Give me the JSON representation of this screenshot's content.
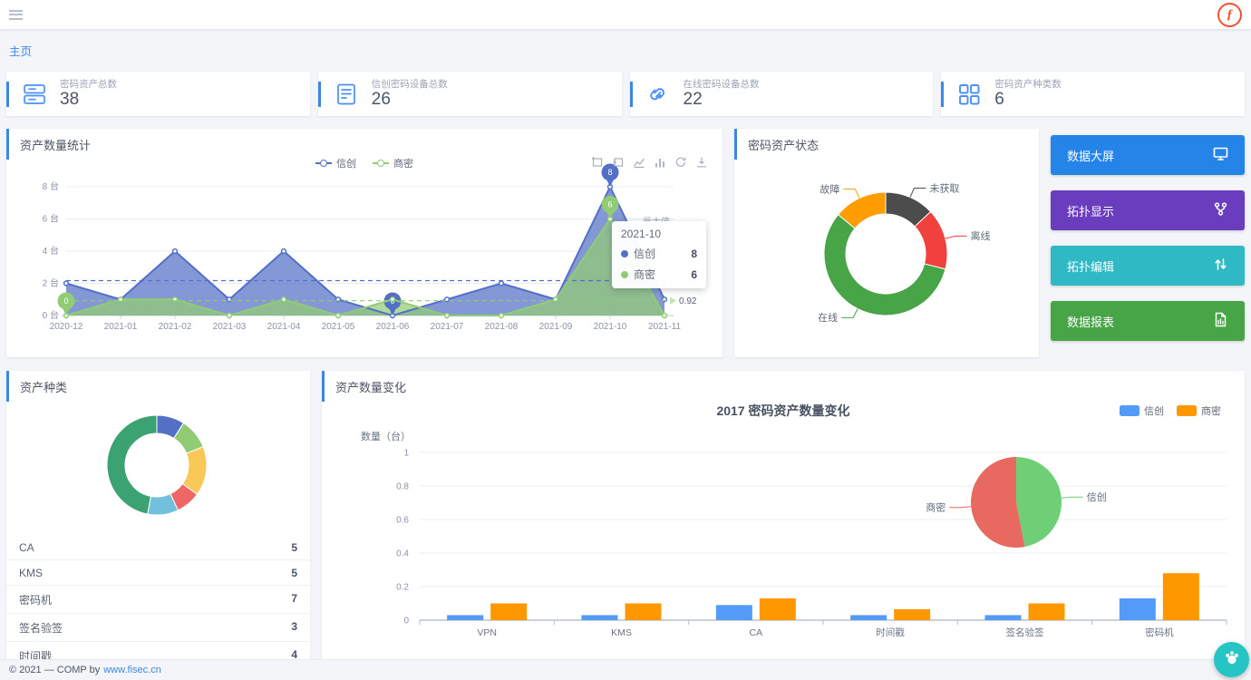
{
  "topbar": {
    "logo_text": "ƒ"
  },
  "breadcrumb": {
    "home": "主页"
  },
  "stat_cards": [
    {
      "label": "密码资产总数",
      "value": "38",
      "icon": "server-icon"
    },
    {
      "label": "信创密码设备总数",
      "value": "26",
      "icon": "document-icon"
    },
    {
      "label": "在线密码设备总数",
      "value": "22",
      "icon": "link-icon"
    },
    {
      "label": "密码资产种类数",
      "value": "6",
      "icon": "grid-icon"
    }
  ],
  "panels": {
    "asset_stats": {
      "title": "资产数量统计",
      "max_point_label": "最大值",
      "toolbox": [
        "area-zoom",
        "zoom-reset",
        "switch-to-line",
        "switch-to-bar",
        "restore",
        "save-image"
      ]
    },
    "asset_status": {
      "title": "密码资产状态"
    },
    "asset_category": {
      "title": "资产种类"
    },
    "asset_change": {
      "title": "资产数量变化"
    }
  },
  "action_buttons": [
    {
      "label": "数据大屏",
      "color": "#2484e8",
      "icon": "monitor-icon"
    },
    {
      "label": "拓扑显示",
      "color": "#6a3dbe",
      "icon": "topology-icon"
    },
    {
      "label": "拓扑编辑",
      "color": "#2fb9c5",
      "icon": "swap-vertical-icon"
    },
    {
      "label": "数据报表",
      "color": "#47a547",
      "icon": "report-icon"
    }
  ],
  "footer": {
    "copyright": "© 2021 — COMP by",
    "link": "www.fisec.cn"
  },
  "chart_data": [
    {
      "id": "asset-count-line",
      "type": "line",
      "title": "资产数量统计",
      "x": [
        "2020-12",
        "2021-01",
        "2021-02",
        "2021-03",
        "2021-04",
        "2021-05",
        "2021-06",
        "2021-07",
        "2021-08",
        "2021-09",
        "2021-10",
        "2021-11"
      ],
      "series": [
        {
          "name": "信创",
          "color": "#5470c6",
          "values": [
            2,
            1,
            4,
            1,
            4,
            1,
            0,
            1,
            2,
            1,
            8,
            1
          ],
          "avg": 2.17,
          "max_point": {
            "x": "2021-10",
            "value": 8
          },
          "min_point": {
            "x": "2021-06",
            "value": 0
          }
        },
        {
          "name": "商密",
          "color": "#91cc75",
          "values": [
            0,
            1,
            1,
            0,
            1,
            0,
            1,
            0,
            0,
            1,
            6,
            0
          ],
          "avg": 0.92,
          "max_point": {
            "x": "2021-10",
            "value": 6
          },
          "min_point": {
            "x": "2020-12",
            "value": 0
          }
        }
      ],
      "ylim": [
        0,
        8
      ],
      "yticks": [
        0,
        2,
        4,
        6,
        8
      ],
      "ytick_suffix": " 台",
      "grid": true,
      "legend_position": "top-center",
      "tooltip": {
        "title": "2021-10",
        "rows": [
          {
            "name": "信创",
            "value": 8
          },
          {
            "name": "商密",
            "value": 6
          }
        ]
      }
    },
    {
      "id": "asset-status-donut",
      "type": "pie",
      "donut": true,
      "title": "密码资产状态",
      "slices": [
        {
          "label": "未获取",
          "pct": 13,
          "color": "#4c4c4c"
        },
        {
          "label": "离线",
          "pct": 16,
          "color": "#f0413e"
        },
        {
          "label": "在线",
          "pct": 57,
          "color": "#47a447"
        },
        {
          "label": "故障",
          "pct": 14,
          "color": "#ff9d00"
        }
      ]
    },
    {
      "id": "asset-category-donut",
      "type": "pie",
      "donut": true,
      "title": "资产种类",
      "slices": [
        {
          "label": "",
          "pct": 9,
          "color": "#5470c6"
        },
        {
          "label": "",
          "pct": 10,
          "color": "#91cc75"
        },
        {
          "label": "",
          "pct": 16,
          "color": "#fac858"
        },
        {
          "label": "",
          "pct": 8,
          "color": "#ee6666"
        },
        {
          "label": "",
          "pct": 10,
          "color": "#73c0de"
        },
        {
          "label": "",
          "pct": 47,
          "color": "#3ba272"
        }
      ],
      "table": [
        {
          "label": "CA",
          "value": "5"
        },
        {
          "label": "KMS",
          "value": "5"
        },
        {
          "label": "密码机",
          "value": "7"
        },
        {
          "label": "签名验签",
          "value": "3"
        },
        {
          "label": "时间戳",
          "value": "4"
        }
      ]
    },
    {
      "id": "asset-change-bar",
      "type": "bar",
      "title": "2017 密码资产数量变化",
      "categories": [
        "VPN",
        "KMS",
        "CA",
        "时间戳",
        "签名验签",
        "密码机"
      ],
      "series": [
        {
          "name": "信创",
          "color": "#549af7",
          "values": [
            0.03,
            0.03,
            0.09,
            0.03,
            0.03,
            0.13
          ]
        },
        {
          "name": "商密",
          "color": "#ff9800",
          "values": [
            0.1,
            0.1,
            0.13,
            0.065,
            0.1,
            0.28
          ]
        }
      ],
      "ylabel": "数量（台）",
      "ylim": [
        0,
        1
      ],
      "yticks": [
        0,
        0.2,
        0.4,
        0.6,
        0.8,
        1
      ],
      "legend_position": "top-right",
      "inset_pie": {
        "slices": [
          {
            "label": "信创",
            "pct": 47,
            "color": "#6fcf76"
          },
          {
            "label": "商密",
            "pct": 53,
            "color": "#e8695f"
          }
        ]
      }
    }
  ]
}
